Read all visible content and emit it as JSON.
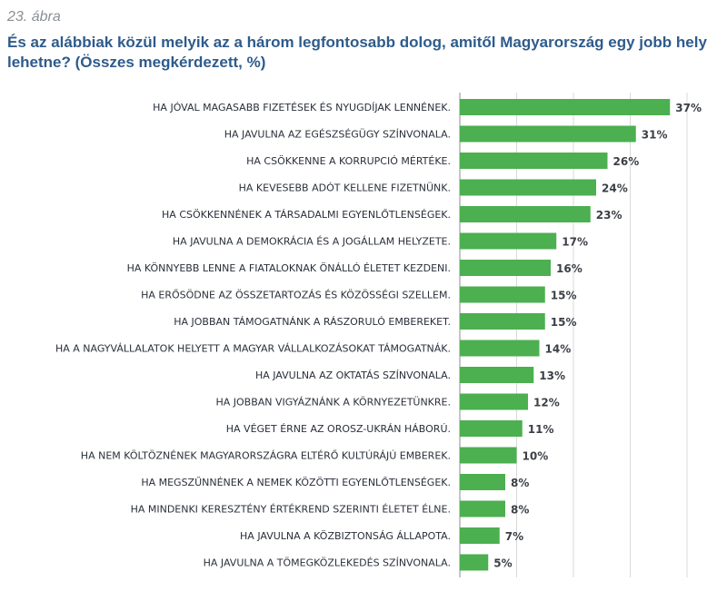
{
  "figure_label": "23. ábra",
  "title": "És az alábbiak közül melyik az a három legfontosabb dolog, amitől Magyarország egy jobb hely lehetne? (Összes megkérdezett, %)",
  "chart_data": {
    "type": "bar",
    "orientation": "horizontal",
    "bar_color": "#4caf50",
    "grid": true,
    "xlim": [
      0,
      40
    ],
    "value_suffix": "%",
    "categories": [
      "HA JÓVAL MAGASABB FIZETÉSEK ÉS NYUGDÍJAK LENNÉNEK.",
      "HA JAVULNA AZ EGÉSZSÉGÜGY SZÍNVONALA.",
      "HA CSÖKKENNE A KORRUPCIÓ MÉRTÉKE.",
      "HA KEVESEBB ADÓT KELLENE FIZETNÜNK.",
      "HA CSÖKKENNÉNEK A TÁRSADALMI EGYENLŐTLENSÉGEK.",
      "HA JAVULNA A DEMOKRÁCIA ÉS A JOGÁLLAM HELYZETE.",
      "HA KÖNNYEBB LENNE A FIATALOKNAK ÖNÁLLÓ ÉLETET KEZDENI.",
      "HA ERŐSÖDNE AZ ÖSSZETARTOZÁS ÉS KÖZÖSSÉGI SZELLEM.",
      "HA JOBBAN TÁMOGATNÁNK A RÁSZORULÓ EMBEREKET.",
      "HA A NAGYVÁLLALATOK HELYETT A MAGYAR VÁLLALKOZÁSOKAT TÁMOGATNÁK.",
      "HA JAVULNA AZ OKTATÁS SZÍNVONALA.",
      "HA JOBBAN VIGYÁZNÁNK A KÖRNYEZETÜNKRE.",
      "HA VÉGET ÉRNE AZ OROSZ-UKRÁN HÁBORÚ.",
      "HA NEM KÖLTÖZNÉNEK MAGYARORSZÁGRA ELTÉRŐ KULTÚRÁJÚ EMBEREK.",
      "HA MEGSZŰNNÉNEK A NEMEK KÖZÖTTI EGYENLŐTLENSÉGEK.",
      "HA MINDENKI KERESZTÉNY ÉRTÉKREND SZERINTI ÉLETET ÉLNE.",
      "HA JAVULNA A KÖZBIZTONSÁG ÁLLAPOTA.",
      "HA JAVULNA A TÖMEGKÖZLEKEDÉS SZÍNVONALA."
    ],
    "values": [
      37,
      31,
      26,
      24,
      23,
      17,
      16,
      15,
      15,
      14,
      13,
      12,
      11,
      10,
      8,
      8,
      7,
      5
    ]
  }
}
